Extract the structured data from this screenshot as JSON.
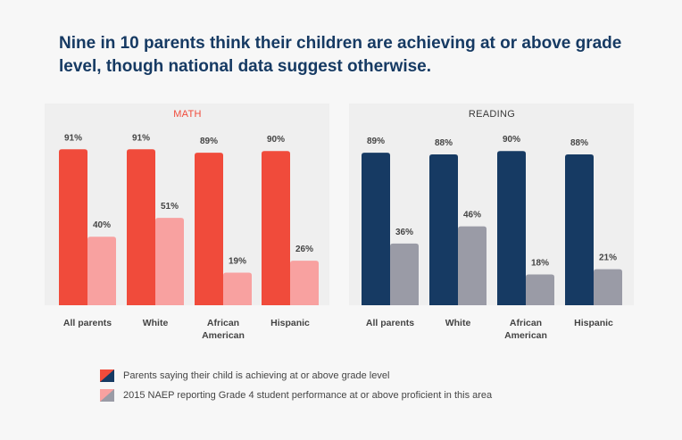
{
  "title": "Nine in 10 parents think their children are achieving at or above grade level, though national data suggest otherwise.",
  "legend": [
    {
      "label": "Parents saying their child is achieving at or above grade level",
      "colors": [
        "#f04b3b",
        "#163a63"
      ]
    },
    {
      "label": "2015 NAEP reporting Grade 4 student performance at or above proficient in this area",
      "colors": [
        "#f8a1a0",
        "#9a9ba6"
      ]
    }
  ],
  "chart_data": [
    {
      "type": "bar",
      "title": "MATH",
      "categories": [
        "All parents",
        "White",
        "African American",
        "Hispanic"
      ],
      "series": [
        {
          "name": "Parents saying their child is achieving at or above grade level",
          "values": [
            91,
            91,
            89,
            90
          ],
          "labels": [
            "91%",
            "91%",
            "89%",
            "90%"
          ],
          "color": "#f04b3b"
        },
        {
          "name": "2015 NAEP reporting Grade 4 student performance at or above proficient in this area",
          "values": [
            40,
            51,
            19,
            26
          ],
          "labels": [
            "40%",
            "51%",
            "19%",
            "26%"
          ],
          "color": "#f8a1a0"
        }
      ],
      "ylim": [
        0,
        100
      ],
      "grid": false
    },
    {
      "type": "bar",
      "title": "READING",
      "categories": [
        "All parents",
        "White",
        "African American",
        "Hispanic"
      ],
      "series": [
        {
          "name": "Parents saying their child is achieving at or above grade level",
          "values": [
            89,
            88,
            90,
            88
          ],
          "labels": [
            "89%",
            "88%",
            "90%",
            "88%"
          ],
          "color": "#163a63"
        },
        {
          "name": "2015 NAEP reporting Grade 4 student performance at or above proficient in this area",
          "values": [
            36,
            46,
            18,
            21
          ],
          "labels": [
            "36%",
            "46%",
            "18%",
            "21%"
          ],
          "color": "#9a9ba6"
        }
      ],
      "ylim": [
        0,
        100
      ],
      "grid": false
    }
  ]
}
